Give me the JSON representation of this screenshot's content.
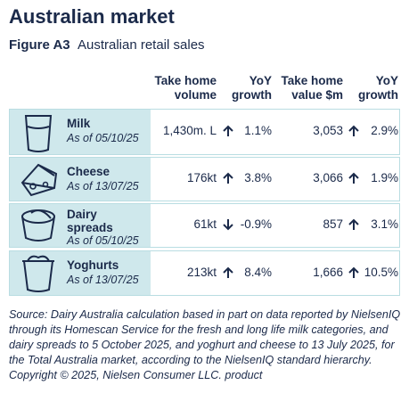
{
  "title": "Australian market",
  "figure": {
    "label": "Figure A3",
    "caption": "Australian retail sales"
  },
  "table": {
    "headers": [
      [
        "Take home",
        "volume"
      ],
      [
        "YoY",
        "growth"
      ],
      [
        "Take home",
        "value $m"
      ],
      [
        "YoY",
        "growth"
      ]
    ],
    "rows": [
      {
        "product": "Milk",
        "date": "As of 05/10/25",
        "volume": "1,430m. L",
        "volume_growth": "1.1%",
        "value": "3,053",
        "value_growth": "2.9%"
      },
      {
        "product": "Cheese",
        "date": "As of 13/07/25",
        "volume": "176kt",
        "volume_growth": "3.8%",
        "value": "3,066",
        "value_growth": "1.9%"
      },
      {
        "product": "Dairy spreads",
        "date": "As of 05/10/25",
        "volume": "61kt",
        "volume_growth": "-0.9%",
        "value": "857",
        "value_growth": "3.1%"
      },
      {
        "product": "Yoghurts",
        "date": "As of 13/07/25",
        "volume": "213kt",
        "volume_growth": "8.4%",
        "value": "1,666",
        "value_growth": "10.5%"
      }
    ]
  },
  "source": "Source: Dairy Australia calculation based in part on data reported by NielsenIQ through its Homescan Service for the fresh and long life milk categories, and dairy spreads to 5 October 2025, and yoghurt and cheese to 13 July 2025, for the Total Australia market, according to the NielsenIQ standard hierarchy. Copyright © 2025, Nielsen Consumer LLC. product"
}
